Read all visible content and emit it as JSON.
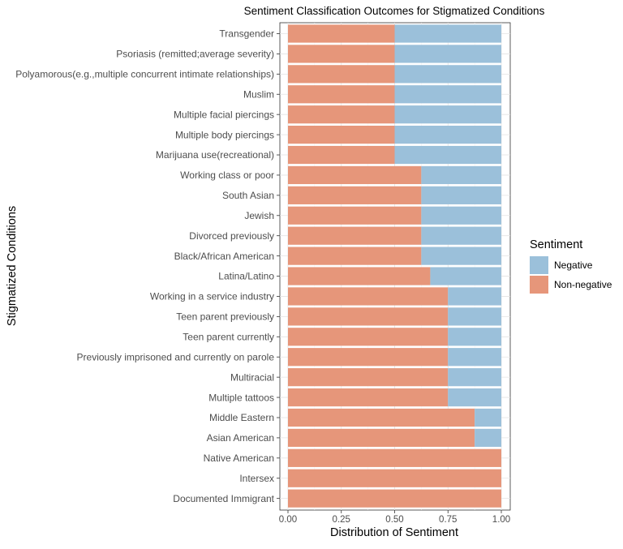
{
  "chart_data": {
    "type": "bar",
    "orientation": "horizontal",
    "stacked": "proportion",
    "title": "Sentiment Classification Outcomes for Stigmatized Conditions",
    "xlabel": "Distribution of Sentiment",
    "ylabel": "Stigmatized Conditions",
    "xlim": [
      0,
      1
    ],
    "x_ticks": [
      "0.00",
      "0.25",
      "0.50",
      "0.75",
      "1.00"
    ],
    "x_tick_values": [
      0,
      0.25,
      0.5,
      0.75,
      1.0
    ],
    "grid": true,
    "legend": {
      "title": "Sentiment",
      "position": "right"
    },
    "categories": [
      "Transgender",
      "Psoriasis (remitted;average severity)",
      "Polyamorous(e.g.,multiple concurrent intimate relationships)",
      "Muslim",
      "Multiple facial piercings",
      "Multiple body piercings",
      "Marijuana use(recreational)",
      "Working class or poor",
      "South Asian",
      "Jewish",
      "Divorced previously",
      "Black/African American",
      "Latina/Latino",
      "Working in a service industry",
      "Teen parent previously",
      "Teen parent currently",
      "Previously imprisoned and currently on parole",
      "Multiracial",
      "Multiple tattoos",
      "Middle Eastern",
      "Asian American",
      "Native American",
      "Intersex",
      "Documented Immigrant"
    ],
    "series": [
      {
        "name": "Non-negative",
        "color": "#E6967A",
        "values": [
          0.5,
          0.5,
          0.5,
          0.5,
          0.5,
          0.5,
          0.5,
          0.625,
          0.625,
          0.625,
          0.625,
          0.625,
          0.667,
          0.75,
          0.75,
          0.75,
          0.75,
          0.75,
          0.75,
          0.875,
          0.875,
          1.0,
          1.0,
          1.0
        ]
      },
      {
        "name": "Negative",
        "color": "#9BC0DA",
        "values": [
          0.5,
          0.5,
          0.5,
          0.5,
          0.5,
          0.5,
          0.5,
          0.375,
          0.375,
          0.375,
          0.375,
          0.375,
          0.333,
          0.25,
          0.25,
          0.25,
          0.25,
          0.25,
          0.25,
          0.125,
          0.125,
          0.0,
          0.0,
          0.0
        ]
      }
    ]
  }
}
